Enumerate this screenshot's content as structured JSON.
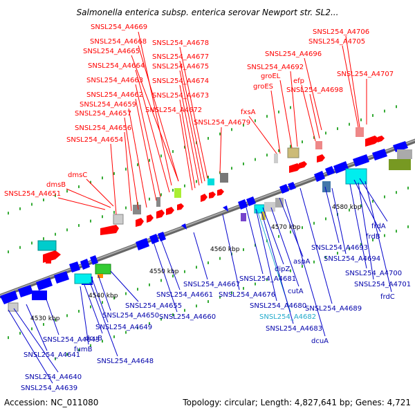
{
  "title": "Salmonella enterica subsp. enterica serovar Newport str. SL2...",
  "accession": "Accession: NC_011080",
  "summary": "Topology: circular; Length: 4,827,641 bp; Genes: 4,721",
  "colors": {
    "forward": "#ff0000",
    "reverse": "#0000ff",
    "rna": "#00aacc",
    "backbone": "#999999"
  },
  "ticks": [
    "4530 kbp",
    "4540 kbp",
    "4550 kbp",
    "4560 kbp",
    "4570 kbp",
    "4580 kbp"
  ],
  "top_labels": [
    "SNSL254_A4669",
    "SNSL254_A4668",
    "SNSL254_A4665",
    "SNSL254_A4664",
    "SNSL254_A4663",
    "SNSL254_A4662",
    "SNSL254_A4659",
    "SNSL254_A4657",
    "SNSL254_A4656",
    "SNSL254_A4654",
    "SNSL254_A4678",
    "SNSL254_A4677",
    "SNSL254_A4675",
    "SNSL254_A4674",
    "SNSL254_A4673",
    "SNSL254_A4672",
    "SNSL254_A4679",
    "dmsC",
    "dmsB",
    "SNSL254_A4651",
    "fxsA",
    "SNSL254_A4696",
    "SNSL254_A4692",
    "groEL",
    "groES",
    "efp",
    "SNSL254_A4698",
    "SNSL254_A4706",
    "SNSL254_A4705",
    "SNSL254_A4707"
  ],
  "bottom_labels": [
    "SNSL254_A4643",
    "SNSL254_A4641",
    "SNSL254_A4640",
    "SNSL254_A4639",
    "dcuB",
    "fumB",
    "SNSL254_A4648",
    "SNSL254_A4649",
    "SNSL254_A4650",
    "SNSL254_A4655",
    "SNSL254_A4660",
    "SNSL254_A4661",
    "SNSL254_A4667",
    "SNSL254_A4676",
    "SNSL254_A4681",
    "dipZ",
    "cutA",
    "aspA",
    "SNSL254_A4680",
    "SNSL254_A4682",
    "SNSL254_A4683",
    "dcuA",
    "SNSL254_A4689",
    "SNSL254_A4693",
    "SNSL254_A4694",
    "frdA",
    "frdB",
    "SNSL254_A4700",
    "SNSL254_A4701",
    "frdC"
  ]
}
